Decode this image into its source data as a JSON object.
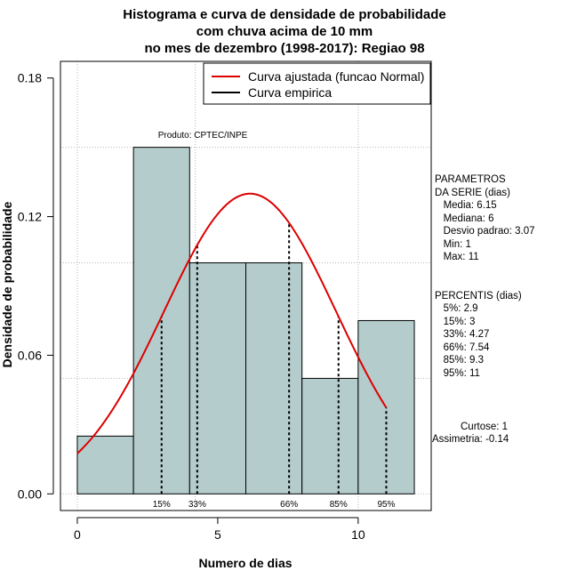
{
  "chart_data": {
    "type": "bar",
    "title_lines": [
      "Histograma e curva de densidade de probabilidade",
      "com chuva acima de 10 mm",
      "no mes de dezembro (1998-2017): Regiao 98"
    ],
    "xlabel": "Numero de dias",
    "ylabel": "Densidade de probabilidade",
    "xlim": [
      -0.6,
      12.6
    ],
    "ylim": [
      -0.0072,
      0.1872
    ],
    "x_ticks": [
      0,
      5,
      10
    ],
    "y_ticks": [
      0.0,
      0.06,
      0.12,
      0.18
    ],
    "y_tick_labels": [
      "0.00",
      "0.06",
      "0.12",
      "0.18"
    ],
    "x_grid": [
      0,
      4.2,
      10
    ],
    "y_grid": [
      0.0,
      0.05,
      0.1,
      0.15
    ],
    "grid": true,
    "bins": [
      {
        "x0": 0,
        "x1": 2,
        "density": 0.025
      },
      {
        "x0": 2,
        "x1": 4,
        "density": 0.15
      },
      {
        "x0": 4,
        "x1": 6,
        "density": 0.1
      },
      {
        "x0": 6,
        "x1": 8,
        "density": 0.1
      },
      {
        "x0": 8,
        "x1": 10,
        "density": 0.05
      },
      {
        "x0": 10,
        "x1": 12,
        "density": 0.075
      }
    ],
    "fitted_curve": {
      "name": "Curva ajustada (funcao Normal)",
      "distribution": "normal",
      "mean": 6.15,
      "sd": 3.07,
      "x_range": [
        0,
        11
      ],
      "color": "#dd0000"
    },
    "empirical_curve": {
      "name": "Curva empirica",
      "color": "#000000"
    },
    "percentile_lines": [
      {
        "label": "15%",
        "x": 3
      },
      {
        "label": "33%",
        "x": 4.27
      },
      {
        "label": "66%",
        "x": 7.54
      },
      {
        "label": "85%",
        "x": 9.3
      },
      {
        "label": "95%",
        "x": 11
      }
    ],
    "legend_position": "top-right",
    "annotation": "Produto: CPTEC/INPE",
    "bar_color": "#b4cccc"
  },
  "side_panel": {
    "parametros_title": "PARAMETROS\nDA SERIE (dias)",
    "parametros_values": "   Media: 6.15\n   Mediana: 6\n   Desvio padrao: 3.07\n   Min: 1\n   Max: 11",
    "percentis_title": "PERCENTIS (dias)",
    "percentis_values": "   5%: 2.9\n   15%: 3\n   33%: 4.27\n   66%: 7.54\n   85%: 9.3\n   95%: 11",
    "curtose": "Curtose: 1",
    "assimetria": "Assimetria: -0.14"
  }
}
